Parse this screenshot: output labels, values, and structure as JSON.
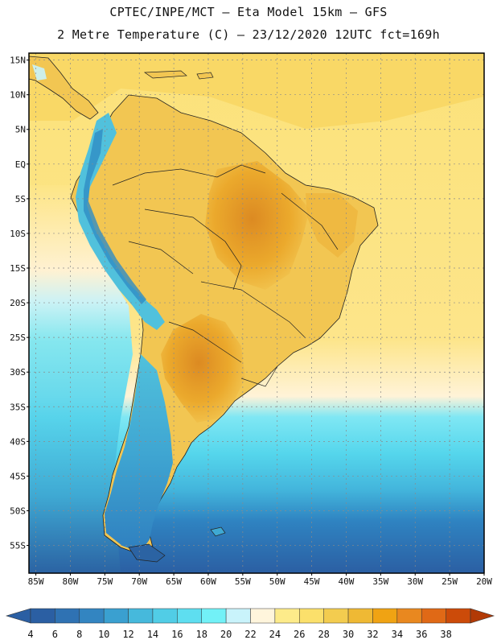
{
  "header": {
    "line1": "CPTEC/INPE/MCT –  Eta Model 15km – GFS",
    "line2": "2 Metre Temperature (C) – 23/12/2020 12UTC fct=169h"
  },
  "map": {
    "lat_labels": [
      "15N",
      "10N",
      "5N",
      "EQ",
      "5S",
      "10S",
      "15S",
      "20S",
      "25S",
      "30S",
      "35S",
      "40S",
      "45S",
      "50S",
      "55S"
    ],
    "lon_labels": [
      "85W",
      "80W",
      "75W",
      "70W",
      "65W",
      "60W",
      "55W",
      "50W",
      "45W",
      "40W",
      "35W",
      "30W",
      "25W",
      "20W"
    ],
    "lon_range": [
      -86,
      -20
    ],
    "lat_range": [
      16,
      -59
    ],
    "grid": true,
    "colors": {
      "ocean_warm": "#fde586",
      "ocean_tropical": "#f7d560",
      "land_hot": "#eba92c",
      "land_very_hot": "#dc8a22",
      "land_warm": "#f2c652",
      "andes_cool": "#51c1dc",
      "andes_cold": "#2f8cc4",
      "ocean_cool": "#5fd9ee",
      "ocean_cold": "#3fa9d3",
      "ocean_coldest": "#2b63a3",
      "pale": "#fff4dc",
      "light_cyan": "#c9f3fb"
    }
  },
  "colorbar": {
    "labels": [
      "4",
      "6",
      "8",
      "10",
      "12",
      "14",
      "16",
      "18",
      "20",
      "22",
      "24",
      "26",
      "28",
      "30",
      "32",
      "34",
      "36",
      "38"
    ],
    "colors": [
      "#2b5fa3",
      "#2f72b3",
      "#3385c1",
      "#3aa0d0",
      "#46b9dc",
      "#51cde6",
      "#5edef0",
      "#72f1f7",
      "#c9f3fb",
      "#fff5dc",
      "#fdeb8a",
      "#fbe06b",
      "#f3cc4f",
      "#efb934",
      "#f0a313",
      "#e9881f",
      "#e06916",
      "#cc4b09"
    ],
    "low_arrow_color": "#2b5fa3",
    "high_arrow_color": "#b23a06"
  }
}
